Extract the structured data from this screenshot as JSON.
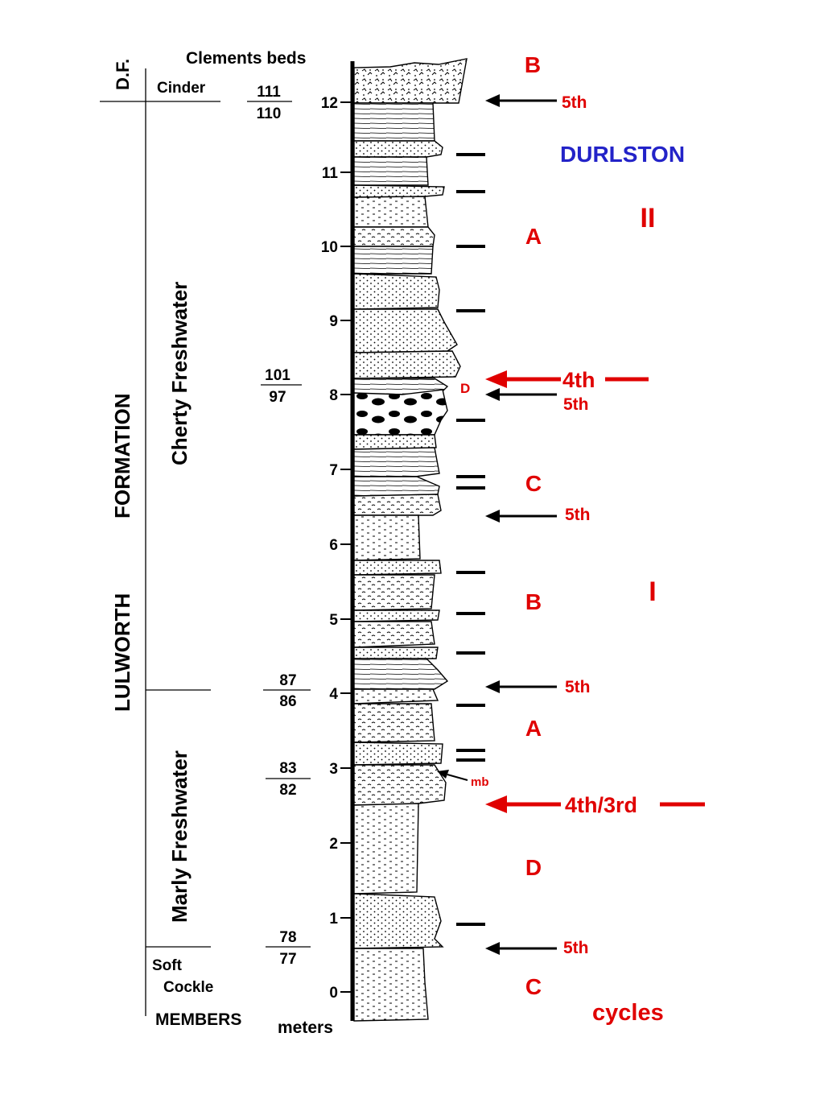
{
  "colors": {
    "red": "#e00000",
    "blue": "#2323c8",
    "black": "#000000"
  },
  "formation": {
    "df": "D.F.",
    "lulworth": "LULWORTH",
    "formation": "FORMATION"
  },
  "members": {
    "cinder": "Cinder",
    "cherty": "Cherty Freshwater",
    "marly": "Marly Freshwater",
    "soft": "Soft",
    "cockle": "Cockle",
    "heading": "MEMBERS"
  },
  "beds": {
    "heading": "Clements beds",
    "pairs": [
      {
        "top": "111",
        "bottom": "110"
      },
      {
        "top": "101",
        "bottom": "97"
      },
      {
        "top": "87",
        "bottom": "86"
      },
      {
        "top": "83",
        "bottom": "82"
      },
      {
        "top": "78",
        "bottom": "77"
      }
    ]
  },
  "scale": {
    "unit": "meters",
    "ticks": [
      "0",
      "1",
      "2",
      "3",
      "4",
      "5",
      "6",
      "7",
      "8",
      "9",
      "10",
      "11",
      "12"
    ]
  },
  "annotations": {
    "d_marker": "D",
    "mb": "mb"
  },
  "cycles": {
    "durlston": "DURLSTON",
    "roman_ii": "II",
    "roman_i": "I",
    "footer": "cycles",
    "letters": [
      "B",
      "A",
      "C",
      "B",
      "A",
      "D",
      "C"
    ],
    "boundaries": [
      "5th",
      "4th",
      "5th",
      "5th",
      "5th",
      "4th/3rd",
      "5th"
    ]
  }
}
